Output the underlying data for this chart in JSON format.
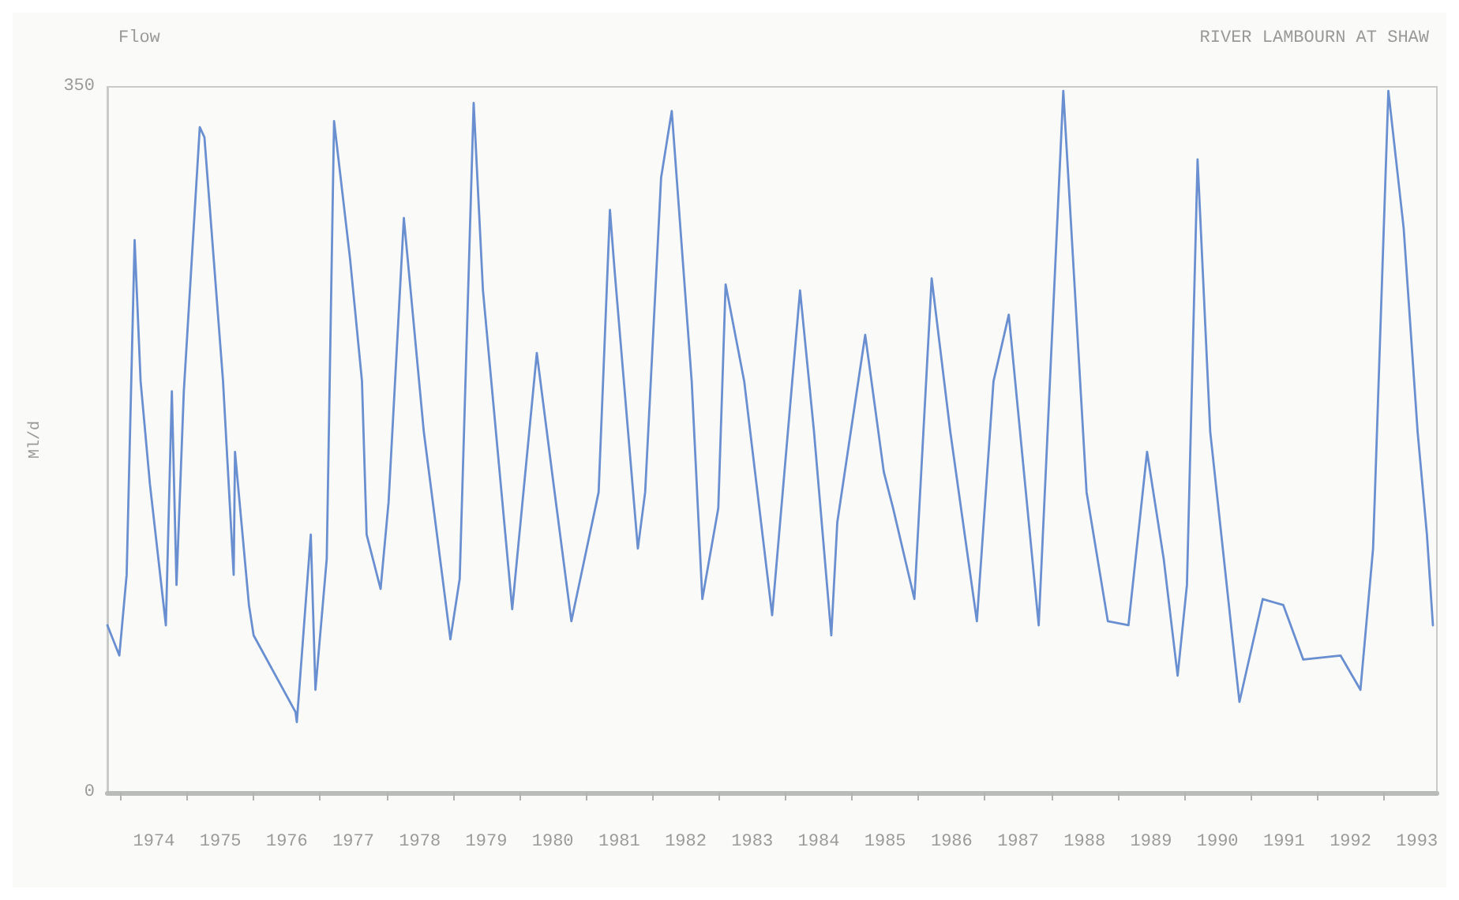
{
  "chart_data": {
    "type": "line",
    "title": "Flow",
    "subtitle": "RIVER LAMBOURN AT SHAW",
    "ylabel": "Ml/d",
    "xlim": [
      1973.8,
      1993.8
    ],
    "ylim": [
      0,
      350
    ],
    "yticks": [
      0,
      350
    ],
    "xticks": [
      {
        "value": 1974,
        "label": null
      },
      {
        "value": 1975,
        "label": null
      },
      {
        "value": 1976,
        "label": null
      },
      {
        "value": 1977,
        "label": null
      },
      {
        "value": 1978,
        "label": null
      },
      {
        "value": 1979,
        "label": null
      },
      {
        "value": 1980,
        "label": null
      },
      {
        "value": 1981,
        "label": null
      },
      {
        "value": 1982,
        "label": null
      },
      {
        "value": 1983,
        "label": null
      },
      {
        "value": 1984,
        "label": null
      },
      {
        "value": 1985,
        "label": null
      },
      {
        "value": 1986,
        "label": null
      },
      {
        "value": 1987,
        "label": null
      },
      {
        "value": 1988,
        "label": null
      },
      {
        "value": 1989,
        "label": null
      },
      {
        "value": 1990,
        "label": null
      },
      {
        "value": 1991,
        "label": null
      },
      {
        "value": 1992,
        "label": null
      },
      {
        "value": 1993,
        "label": null
      },
      {
        "value": 1974.5,
        "label": "1974"
      },
      {
        "value": 1975.5,
        "label": "1975"
      },
      {
        "value": 1976.5,
        "label": "1976"
      },
      {
        "value": 1977.5,
        "label": "1977"
      },
      {
        "value": 1978.5,
        "label": "1978"
      },
      {
        "value": 1979.5,
        "label": "1979"
      },
      {
        "value": 1980.5,
        "label": "1980"
      },
      {
        "value": 1981.5,
        "label": "1981"
      },
      {
        "value": 1982.5,
        "label": "1982"
      },
      {
        "value": 1983.5,
        "label": "1983"
      },
      {
        "value": 1984.5,
        "label": "1984"
      },
      {
        "value": 1985.5,
        "label": "1985"
      },
      {
        "value": 1986.5,
        "label": "1986"
      },
      {
        "value": 1987.5,
        "label": "1987"
      },
      {
        "value": 1988.5,
        "label": "1988"
      },
      {
        "value": 1989.5,
        "label": "1989"
      },
      {
        "value": 1990.5,
        "label": "1990"
      },
      {
        "value": 1991.5,
        "label": "1991"
      },
      {
        "value": 1992.5,
        "label": "1992"
      },
      {
        "value": 1993.5,
        "label": "1993"
      }
    ],
    "grid": false,
    "marker": "none",
    "line_style": "solid",
    "series": [
      {
        "color": "#6a8fd0",
        "x": [
          1973.8,
          1973.98,
          1974.09,
          1974.21,
          1974.3,
          1974.44,
          1974.68,
          1974.77,
          1974.84,
          1974.95,
          1975.19,
          1975.26,
          1975.54,
          1975.7,
          1975.72,
          1975.93,
          1976.0,
          1976.63,
          1976.65,
          1976.86,
          1976.93,
          1977.1,
          1977.21,
          1977.45,
          1977.63,
          1977.7,
          1977.91,
          1978.03,
          1978.26,
          1978.56,
          1978.96,
          1979.1,
          1979.31,
          1979.45,
          1979.89,
          1980.26,
          1980.5,
          1980.78,
          1981.19,
          1981.36,
          1981.43,
          1981.78,
          1981.89,
          1982.13,
          1982.29,
          1982.59,
          1982.75,
          1982.99,
          1983.1,
          1983.38,
          1983.8,
          1984.22,
          1984.43,
          1984.69,
          1984.78,
          1985.2,
          1985.48,
          1985.62,
          1985.94,
          1986.2,
          1986.48,
          1986.88,
          1987.13,
          1987.36,
          1987.81,
          1988.18,
          1988.53,
          1988.85,
          1989.16,
          1989.44,
          1989.69,
          1989.9,
          1990.04,
          1990.2,
          1990.39,
          1990.72,
          1990.83,
          1991.18,
          1991.49,
          1991.79,
          1992.35,
          1992.65,
          1992.84,
          1993.07,
          1993.3,
          1993.51,
          1993.65,
          1993.74
        ],
        "values": [
          83,
          68,
          108,
          274,
          204,
          153,
          83,
          199,
          103,
          199,
          330,
          325,
          204,
          108,
          169,
          93,
          78,
          40,
          35,
          128,
          51,
          116,
          333,
          265,
          204,
          128,
          101,
          144,
          285,
          179,
          76,
          106,
          342,
          249,
          91,
          218,
          156,
          85,
          149,
          289,
          259,
          121,
          149,
          305,
          338,
          204,
          96,
          141,
          252,
          204,
          88,
          249,
          179,
          78,
          134,
          227,
          159,
          141,
          96,
          255,
          179,
          85,
          204,
          237,
          83,
          348,
          149,
          85,
          83,
          169,
          116,
          58,
          103,
          314,
          179,
          78,
          45,
          96,
          93,
          66,
          68,
          51,
          121,
          348,
          280,
          179,
          128,
          83
        ]
      }
    ]
  }
}
